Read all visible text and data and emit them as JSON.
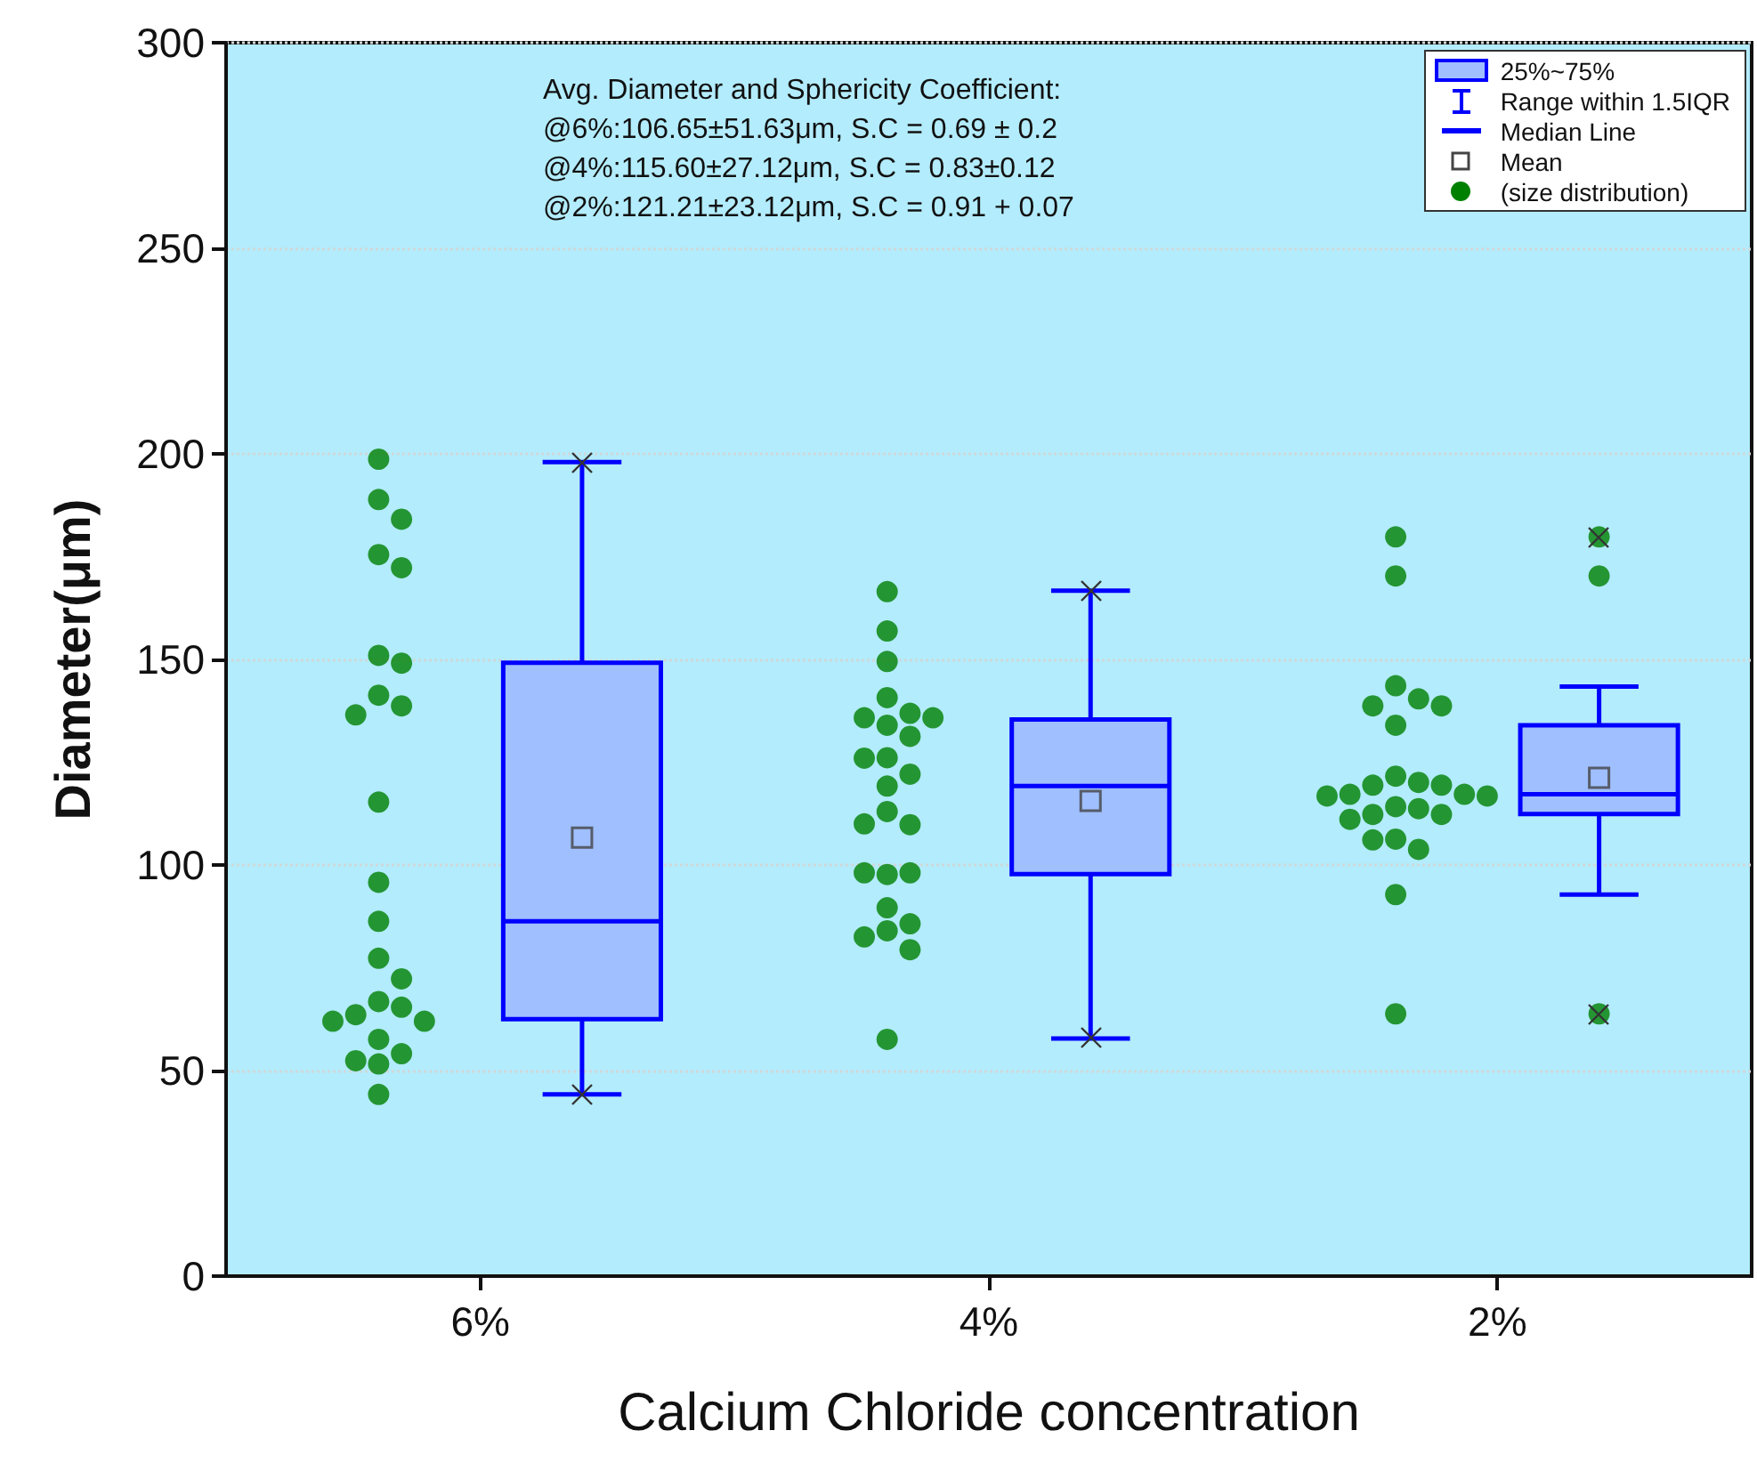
{
  "chart_data": {
    "type": "box",
    "xlabel": "Calcium Chloride concentration",
    "ylabel": "Diameter(μm)",
    "categories": [
      "6%",
      "4%",
      "2%"
    ],
    "ylim": [
      0,
      300
    ],
    "yticks": [
      0,
      50,
      100,
      150,
      200,
      250,
      300
    ],
    "grid": "y",
    "legend": "top right",
    "annotations": [
      "Avg. Diameter and Sphericity Coefficient:\n@6%:106.65±51.63μm, S.C = 0.69 ± 0.2\n@4%:115.60±27.12μm, S.C = 0.83±0.12\n@2%:121.21±23.12μm, S.C = 0.91 + 0.07",
      "Range within 1.5IQR",
      "Median Line",
      "Mean"
    ],
    "series": [
      {
        "type": "box",
        "name": "25%~75%",
        "color": "#9fbffe",
        "boxes": [
          {
            "low": 44.2,
            "q1": 62.5,
            "median": 86.3,
            "q3": 149.2,
            "high": 198,
            "mean": 106.65
          },
          {
            "low": 57.8,
            "q1": 97.8,
            "median": 119.2,
            "q3": 135.4,
            "high": 166.7,
            "mean": 115.6
          },
          {
            "low": 92.8,
            "q1": 112.4,
            "median": 117.2,
            "q3": 134,
            "high": 143.4,
            "mean": 121.21,
            "outliers": [
              179.8,
              170.3,
              63.8
            ]
          }
        ]
      },
      {
        "type": "scatter",
        "name": "(size distribution)",
        "color": "#008000",
        "x": [
          "6%",
          "6%",
          "6%",
          "6%",
          "6%",
          "6%",
          "6%",
          "6%",
          "6%",
          "6%",
          "6%",
          "6%",
          "6%",
          "6%",
          "6%",
          "6%",
          "6%",
          "6%",
          "6%",
          "6%",
          "6%",
          "6%",
          "6%",
          "6%",
          "6%",
          "4%",
          "4%",
          "4%",
          "4%",
          "4%",
          "4%",
          "4%",
          "4%",
          "4%",
          "4%",
          "4%",
          "4%",
          "4%",
          "4%",
          "4%",
          "4%",
          "4%",
          "4%",
          "4%",
          "4%",
          "4%",
          "4%",
          "4%",
          "4%",
          "4%",
          "2%",
          "2%",
          "2%",
          "2%",
          "2%",
          "2%",
          "2%",
          "2%",
          "2%",
          "2%",
          "2%",
          "2%",
          "2%",
          "2%",
          "2%",
          "2%",
          "2%",
          "2%",
          "2%",
          "2%",
          "2%",
          "2%",
          "2%",
          "2%",
          "2%"
        ],
        "values": [
          198.7,
          188.9,
          184.1,
          175.5,
          172.3,
          151,
          149.1,
          141.3,
          138.7,
          136.5,
          115.3,
          95.8,
          86.3,
          77.3,
          72.3,
          66.8,
          65.4,
          63.6,
          62,
          62,
          57.6,
          54.1,
          52.4,
          51.6,
          44.2,
          166.5,
          156.9,
          149.5,
          140.7,
          136.9,
          135.8,
          135.8,
          134,
          131.3,
          126.1,
          126,
          122.1,
          119.2,
          113,
          109.8,
          110,
          97.7,
          98.1,
          98.1,
          89.6,
          85.7,
          84,
          82.5,
          79.4,
          57.6,
          179.8,
          170.3,
          143.6,
          140.4,
          138.7,
          138.7,
          134,
          121.6,
          120.1,
          119.4,
          119.4,
          117.2,
          117.2,
          116.8,
          116.8,
          114.2,
          113.7,
          112.3,
          112.3,
          111.1,
          106.3,
          103.8,
          106.1,
          92.8,
          63.8
        ]
      }
    ]
  }
}
